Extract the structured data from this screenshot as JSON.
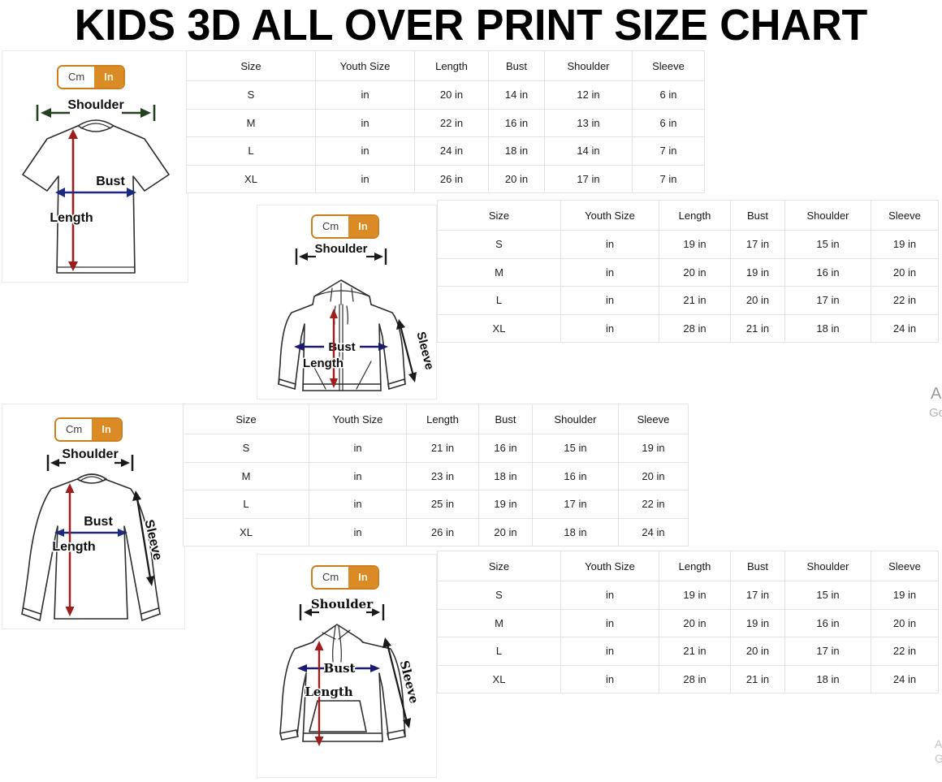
{
  "title": "KIDS 3D ALL OVER PRINT SIZE CHART",
  "toggle": {
    "cm_label": "Cm",
    "in_label": "In",
    "active_unit": "In"
  },
  "colors": {
    "accent_orange": "#DB8B25",
    "toggle_border": "#CD7F1D",
    "table_border": "#E3E3E3",
    "length_arrow": "#A01D1D",
    "bust_arrow": "#1B2A80",
    "shoulder_arrow_tshirt": "#23401F",
    "arrow_black": "#1A1A1A"
  },
  "garments": [
    {
      "type": "t-shirt",
      "labels": {
        "shoulder": "Shoulder",
        "bust": "Bust",
        "length": "Length"
      }
    },
    {
      "type": "zip-hoodie",
      "labels": {
        "shoulder": "Shoulder",
        "bust": "Bust",
        "length": "Length",
        "sleeve": "Sleeve"
      }
    },
    {
      "type": "long-sleeve",
      "labels": {
        "shoulder": "Shoulder",
        "bust": "Bust",
        "length": "Length",
        "sleeve": "Sleeve"
      }
    },
    {
      "type": "pullover-hoodie",
      "labels": {
        "shoulder": "Shoulder",
        "bust": "Bust",
        "length": "Length",
        "sleeve": "Sleeve"
      }
    }
  ],
  "tables": [
    {
      "garment": "t-shirt",
      "headers": [
        "Size",
        "Youth Size",
        "Length",
        "Bust",
        "Shoulder",
        "Sleeve"
      ],
      "rows": [
        [
          "S",
          "in",
          "20 in",
          "14 in",
          "12 in",
          "6 in"
        ],
        [
          "M",
          "in",
          "22 in",
          "16 in",
          "13 in",
          "6 in"
        ],
        [
          "L",
          "in",
          "24 in",
          "18 in",
          "14 in",
          "7 in"
        ],
        [
          "XL",
          "in",
          "26 in",
          "20 in",
          "17 in",
          "7 in"
        ]
      ]
    },
    {
      "garment": "zip-hoodie",
      "headers": [
        "Size",
        "Youth Size",
        "Length",
        "Bust",
        "Shoulder",
        "Sleeve"
      ],
      "rows": [
        [
          "S",
          "in",
          "19 in",
          "17 in",
          "15 in",
          "19 in"
        ],
        [
          "M",
          "in",
          "20 in",
          "19 in",
          "16 in",
          "20 in"
        ],
        [
          "L",
          "in",
          "21 in",
          "20 in",
          "17 in",
          "22 in"
        ],
        [
          "XL",
          "in",
          "28 in",
          "21 in",
          "18 in",
          "24 in"
        ]
      ]
    },
    {
      "garment": "long-sleeve",
      "headers": [
        "Size",
        "Youth Size",
        "Length",
        "Bust",
        "Shoulder",
        "Sleeve"
      ],
      "rows": [
        [
          "S",
          "in",
          "21 in",
          "16 in",
          "15 in",
          "19 in"
        ],
        [
          "M",
          "in",
          "23 in",
          "18 in",
          "16 in",
          "20 in"
        ],
        [
          "L",
          "in",
          "25 in",
          "19 in",
          "17 in",
          "22 in"
        ],
        [
          "XL",
          "in",
          "26 in",
          "20 in",
          "18 in",
          "24 in"
        ]
      ]
    },
    {
      "garment": "pullover-hoodie",
      "headers": [
        "Size",
        "Youth Size",
        "Length",
        "Bust",
        "Shoulder",
        "Sleeve"
      ],
      "rows": [
        [
          "S",
          "in",
          "19 in",
          "17 in",
          "15 in",
          "19 in"
        ],
        [
          "M",
          "in",
          "20 in",
          "19 in",
          "16 in",
          "20 in"
        ],
        [
          "L",
          "in",
          "21 in",
          "20 in",
          "17 in",
          "22 in"
        ],
        [
          "XL",
          "in",
          "28 in",
          "21 in",
          "18 in",
          "24 in"
        ]
      ]
    }
  ],
  "watermarks": [
    {
      "text": "A"
    },
    {
      "text": "Go"
    },
    {
      "text": "A"
    },
    {
      "text": "G"
    }
  ]
}
